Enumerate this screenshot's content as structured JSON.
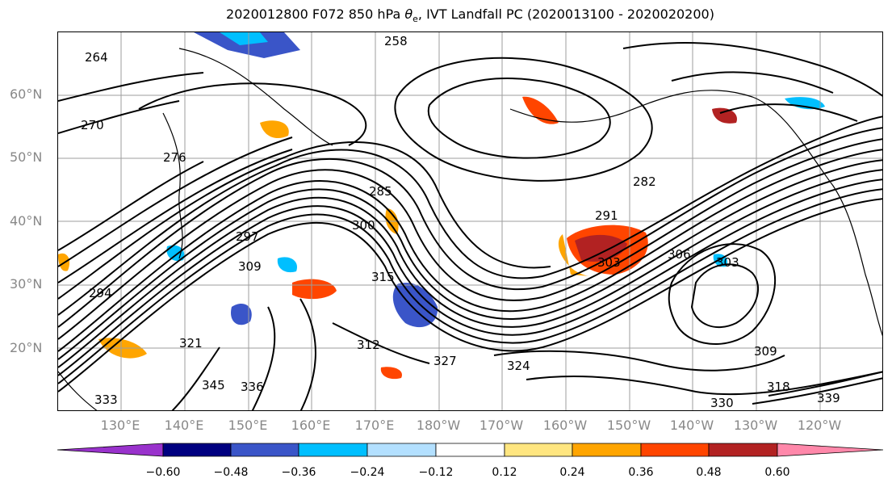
{
  "title": {
    "prefix": "2020012800 F072 850 hPa ",
    "symbol": "θ",
    "subscript": "e",
    "suffix": ", IVT Landfall PC (2020013100 - 2020020200)"
  },
  "map": {
    "projection": "lat-lon",
    "lat_labels": [
      "60°N",
      "50°N",
      "40°N",
      "30°N",
      "20°N"
    ],
    "lon_labels": [
      "130°E",
      "140°E",
      "150°E",
      "160°E",
      "170°E",
      "180°W",
      "170°W",
      "160°W",
      "150°W",
      "140°W",
      "130°W",
      "120°W"
    ],
    "contour_labels": [
      "264",
      "270",
      "276",
      "258",
      "294",
      "297",
      "309",
      "285",
      "300",
      "291",
      "282",
      "303",
      "306",
      "303",
      "309",
      "318",
      "324",
      "327",
      "333",
      "336",
      "339",
      "345",
      "312",
      "330",
      "315",
      "321"
    ],
    "colors": {
      "coast": "#000000",
      "grid": "#9e9e9e",
      "contour": "#000000"
    }
  },
  "colorbar": {
    "colors": [
      "#9932cc",
      "#000080",
      "#3a55c8",
      "#00bfff",
      "#b3e0ff",
      "#ffffff",
      "#ffe680",
      "#ffa500",
      "#ff4500",
      "#b22222",
      "#ff88aa"
    ],
    "ticks": [
      "−0.60",
      "−0.48",
      "−0.36",
      "−0.24",
      "−0.12",
      "0.12",
      "0.24",
      "0.36",
      "0.48",
      "0.60"
    ]
  }
}
